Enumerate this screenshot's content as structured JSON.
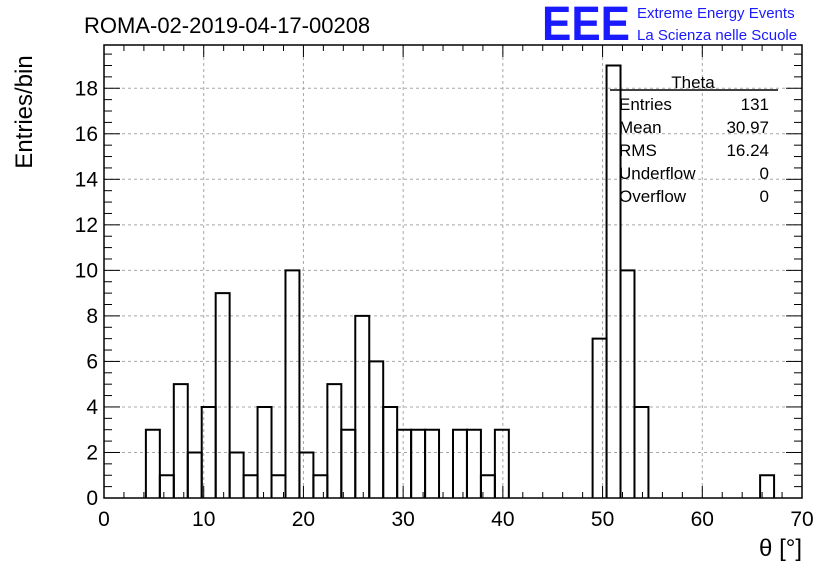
{
  "header": {
    "run_title": "ROMA-02-2019-04-17-00208",
    "logo_text": "EEE",
    "logo_line1": "Extreme Energy Events",
    "logo_line2": "La Scienza nelle Scuole",
    "logo_color": "#1a1aff"
  },
  "stats": {
    "name": "Theta",
    "rows": [
      {
        "label": "Entries",
        "value": "131"
      },
      {
        "label": "Mean",
        "value": "30.97"
      },
      {
        "label": "RMS",
        "value": "16.24"
      },
      {
        "label": "Underflow",
        "value": "0"
      },
      {
        "label": "Overflow",
        "value": "0"
      }
    ]
  },
  "chart_data": {
    "type": "histogram",
    "title": "ROMA-02-2019-04-17-00208",
    "xlabel": "θ [°]",
    "ylabel": "Entries/bin",
    "xlim": [
      0,
      70
    ],
    "ylim": [
      0,
      19.9
    ],
    "bin_width": 1.4,
    "x_ticks": [
      0,
      10,
      20,
      30,
      40,
      50,
      60,
      70
    ],
    "y_ticks": [
      0,
      2,
      4,
      6,
      8,
      10,
      12,
      14,
      16,
      18
    ],
    "grid": true,
    "line_color": "#000000",
    "bins": [
      {
        "x0": 4.2,
        "count": 3
      },
      {
        "x0": 5.6,
        "count": 1
      },
      {
        "x0": 7.0,
        "count": 5
      },
      {
        "x0": 8.4,
        "count": 2
      },
      {
        "x0": 9.8,
        "count": 4
      },
      {
        "x0": 11.2,
        "count": 9
      },
      {
        "x0": 12.6,
        "count": 2
      },
      {
        "x0": 14.0,
        "count": 1
      },
      {
        "x0": 15.4,
        "count": 4
      },
      {
        "x0": 16.8,
        "count": 1
      },
      {
        "x0": 18.2,
        "count": 10
      },
      {
        "x0": 19.6,
        "count": 2
      },
      {
        "x0": 21.0,
        "count": 1
      },
      {
        "x0": 22.4,
        "count": 5
      },
      {
        "x0": 23.8,
        "count": 3
      },
      {
        "x0": 25.2,
        "count": 8
      },
      {
        "x0": 26.6,
        "count": 6
      },
      {
        "x0": 28.0,
        "count": 4
      },
      {
        "x0": 29.4,
        "count": 3
      },
      {
        "x0": 30.8,
        "count": 3
      },
      {
        "x0": 32.2,
        "count": 3
      },
      {
        "x0": 33.6,
        "count": 0
      },
      {
        "x0": 35.0,
        "count": 3
      },
      {
        "x0": 36.4,
        "count": 3
      },
      {
        "x0": 37.8,
        "count": 1
      },
      {
        "x0": 39.2,
        "count": 3
      },
      {
        "x0": 40.6,
        "count": 0
      },
      {
        "x0": 49.0,
        "count": 7
      },
      {
        "x0": 50.4,
        "count": 19
      },
      {
        "x0": 51.8,
        "count": 10
      },
      {
        "x0": 53.2,
        "count": 4
      },
      {
        "x0": 54.6,
        "count": 0
      },
      {
        "x0": 65.8,
        "count": 1
      }
    ]
  }
}
